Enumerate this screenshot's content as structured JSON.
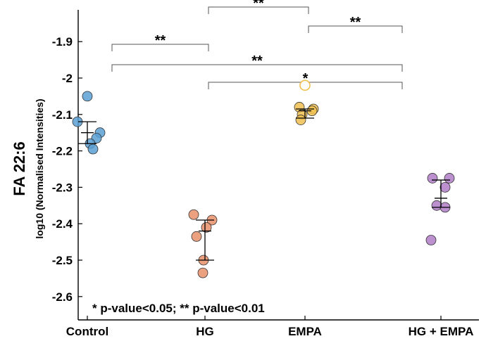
{
  "chart_data": {
    "type": "scatter",
    "ylabel_main": "FA 22:6",
    "ylabel": "log10 (Normalised Intensities)",
    "categories": [
      "Control",
      "HG",
      "EMPA",
      "HG + EMPA"
    ],
    "ylim": [
      -2.65,
      -1.8
    ],
    "yticks": [
      "-1.9",
      "-2",
      "-2.1",
      "-2.2",
      "-2.3",
      "-2.4",
      "-2.5",
      "-2.6"
    ],
    "ytick_values": [
      -1.9,
      -2.0,
      -2.1,
      -2.2,
      -2.3,
      -2.4,
      -2.5,
      -2.6
    ],
    "grid": false,
    "series": [
      {
        "category": "Control",
        "color": "#5a9fd4",
        "points": [
          -2.05,
          -2.12,
          -2.15,
          -2.165,
          -2.18,
          -2.195
        ],
        "outliers": [],
        "whisker_low": -2.18,
        "median": -2.15,
        "whisker_high": -2.12
      },
      {
        "category": "HG",
        "color": "#e8906a",
        "points": [
          -2.375,
          -2.39,
          -2.41,
          -2.435,
          -2.5,
          -2.535
        ],
        "outliers": [],
        "whisker_low": -2.5,
        "median": -2.42,
        "whisker_high": -2.39
      },
      {
        "category": "EMPA",
        "color": "#f0c050",
        "points": [
          -2.08,
          -2.085,
          -2.09,
          -2.1,
          -2.115
        ],
        "outliers": [
          -2.02
        ],
        "whisker_low": -2.11,
        "median": -2.09,
        "whisker_high": -2.085
      },
      {
        "category": "HG + EMPA",
        "color": "#b07cc6",
        "points": [
          -2.275,
          -2.275,
          -2.3,
          -2.35,
          -2.355,
          -2.445
        ],
        "outliers": [],
        "whisker_low": -2.355,
        "median": -2.33,
        "whisker_high": -2.28
      }
    ],
    "significance": [
      {
        "from": "Control",
        "to": "HG",
        "label": "**"
      },
      {
        "from": "HG",
        "to": "EMPA",
        "label": "**"
      },
      {
        "from": "EMPA",
        "to": "HG + EMPA",
        "label": "**"
      },
      {
        "from": "Control",
        "to": "HG + EMPA",
        "label": "**"
      },
      {
        "from": "HG",
        "to": "HG + EMPA",
        "label": "*"
      }
    ],
    "annotation": "* p-value<0.05; ** p-value<0.01"
  }
}
